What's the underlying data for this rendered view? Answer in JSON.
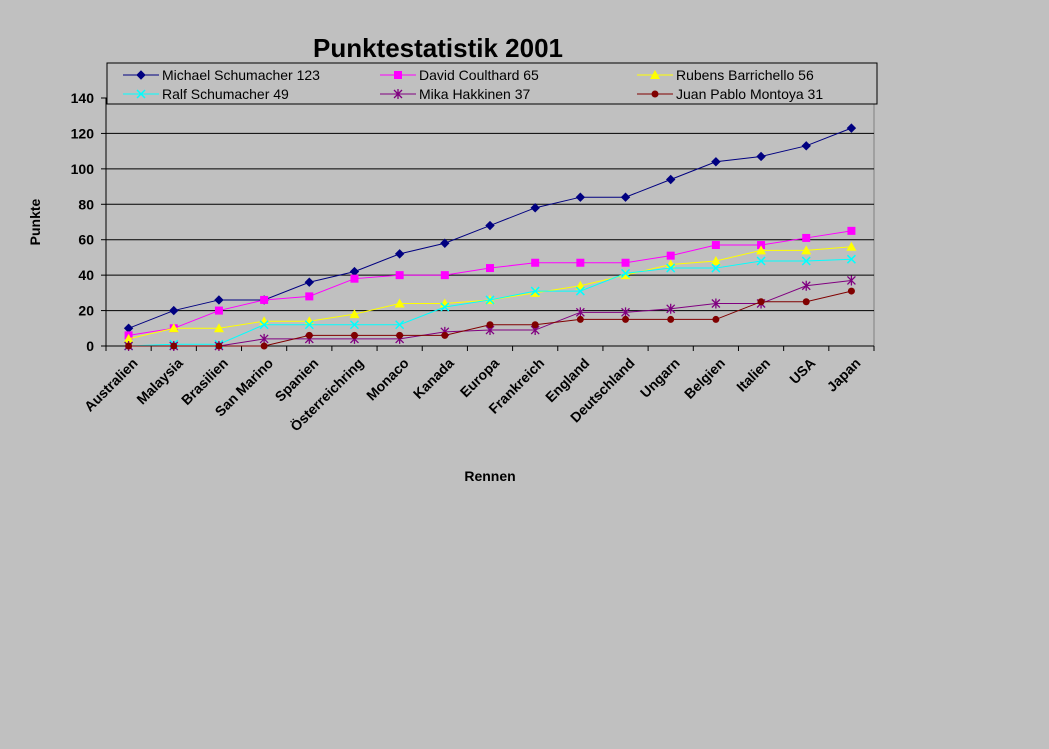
{
  "chart_data": {
    "type": "line",
    "title": "Punktestatistik 2001",
    "xlabel": "Rennen",
    "ylabel": "Punkte",
    "ylim": [
      0,
      140
    ],
    "yticks": [
      0,
      20,
      40,
      60,
      80,
      100,
      120,
      140
    ],
    "grid": "horizontal",
    "legend": "top",
    "categories": [
      "Australien",
      "Malaysia",
      "Brasilien",
      "San Marino",
      "Spanien",
      "Österreichring",
      "Monaco",
      "Kanada",
      "Europa",
      "Frankreich",
      "England",
      "Deutschland",
      "Ungarn",
      "Belgien",
      "Italien",
      "USA",
      "Japan"
    ],
    "series": [
      {
        "name": "Michael Schumacher 123",
        "color": "#000080",
        "marker": "diamond",
        "values": [
          10,
          20,
          26,
          26,
          36,
          42,
          52,
          58,
          68,
          78,
          84,
          84,
          94,
          104,
          107,
          113,
          123
        ]
      },
      {
        "name": "David Coulthard 65",
        "color": "#ff00ff",
        "marker": "square",
        "values": [
          6,
          10,
          20,
          26,
          28,
          38,
          40,
          40,
          44,
          47,
          47,
          47,
          51,
          57,
          57,
          61,
          65
        ]
      },
      {
        "name": "Rubens Barrichello 56",
        "color": "#ffff00",
        "marker": "triangle",
        "values": [
          4,
          10,
          10,
          14,
          14,
          18,
          24,
          24,
          26,
          30,
          34,
          40,
          46,
          48,
          54,
          54,
          56
        ]
      },
      {
        "name": "Ralf Schumacher 49",
        "color": "#00ffff",
        "marker": "x",
        "values": [
          0,
          1,
          1,
          12,
          12,
          12,
          12,
          22,
          26,
          31,
          31,
          41,
          44,
          44,
          48,
          48,
          49
        ]
      },
      {
        "name": "Mika Hakkinen 37",
        "color": "#800080",
        "marker": "star",
        "values": [
          0,
          0,
          0,
          4,
          4,
          4,
          4,
          8,
          9,
          9,
          19,
          19,
          21,
          24,
          24,
          34,
          37
        ]
      },
      {
        "name": "Juan Pablo Montoya 31",
        "color": "#800000",
        "marker": "circle",
        "values": [
          0,
          0,
          0,
          0,
          6,
          6,
          6,
          6,
          12,
          12,
          15,
          15,
          15,
          15,
          25,
          25,
          31
        ]
      }
    ]
  }
}
